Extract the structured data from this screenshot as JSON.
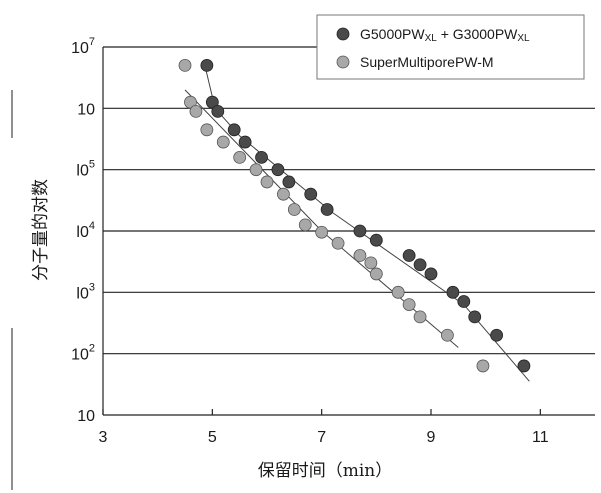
{
  "chart_data": {
    "type": "scatter",
    "title": "",
    "xlabel": "保留时间（min）",
    "ylabel": "分子量的对数",
    "xlim": [
      3,
      12
    ],
    "ylim_log10": [
      1,
      7
    ],
    "x_ticks": [
      {
        "value": 3,
        "label": "3"
      },
      {
        "value": 5,
        "label": "5"
      },
      {
        "value": 7,
        "label": "7"
      },
      {
        "value": 9,
        "label": "9"
      },
      {
        "value": 11,
        "label": "11"
      }
    ],
    "y_ticks": [
      {
        "value": 7,
        "base": "10",
        "exp": "7"
      },
      {
        "value": 6,
        "base": "10",
        "exp": ""
      },
      {
        "value": 5,
        "base": "l0",
        "exp": "5"
      },
      {
        "value": 4,
        "base": "l0",
        "exp": "4"
      },
      {
        "value": 3,
        "base": "l0",
        "exp": "3"
      },
      {
        "value": 2,
        "base": "10",
        "exp": "2"
      },
      {
        "value": 1,
        "base": "10",
        "exp": ""
      }
    ],
    "grid": "horizontal",
    "legend": "top-right",
    "series": [
      {
        "name_main": "G5000PW",
        "name_sub1": "XL",
        "name_mid": " + G3000PW",
        "name_sub2": "XL",
        "color": "#4a4a4a",
        "points": [
          [
            4.9,
            6.7
          ],
          [
            5.0,
            6.1
          ],
          [
            5.1,
            5.95
          ],
          [
            5.4,
            5.65
          ],
          [
            5.6,
            5.45
          ],
          [
            5.9,
            5.2
          ],
          [
            6.2,
            5.0
          ],
          [
            6.4,
            4.8
          ],
          [
            6.8,
            4.6
          ],
          [
            7.1,
            4.35
          ],
          [
            7.7,
            4.0
          ],
          [
            8.0,
            3.85
          ],
          [
            8.6,
            3.6
          ],
          [
            8.8,
            3.45
          ],
          [
            9.0,
            3.3
          ],
          [
            9.4,
            3.0
          ],
          [
            9.6,
            2.85
          ],
          [
            9.8,
            2.6
          ],
          [
            10.2,
            2.3
          ],
          [
            10.7,
            1.8
          ]
        ],
        "fit_line": [
          [
            4.85,
            6.75
          ],
          [
            5.05,
            6.0
          ],
          [
            5.5,
            5.55
          ],
          [
            7.2,
            4.3
          ],
          [
            9.6,
            2.8
          ],
          [
            10.8,
            1.55
          ]
        ]
      },
      {
        "name_main": "SuperMultiporePW-M",
        "name_sub1": "",
        "name_mid": "",
        "name_sub2": "",
        "color": "#a8a8a8",
        "points": [
          [
            4.5,
            6.7
          ],
          [
            4.6,
            6.1
          ],
          [
            4.7,
            5.95
          ],
          [
            4.9,
            5.65
          ],
          [
            5.2,
            5.45
          ],
          [
            5.5,
            5.2
          ],
          [
            5.8,
            5.0
          ],
          [
            6.0,
            4.8
          ],
          [
            6.3,
            4.6
          ],
          [
            6.5,
            4.35
          ],
          [
            6.7,
            4.1
          ],
          [
            7.0,
            3.98
          ],
          [
            7.3,
            3.8
          ],
          [
            7.7,
            3.6
          ],
          [
            7.9,
            3.48
          ],
          [
            8.0,
            3.3
          ],
          [
            8.4,
            3.0
          ],
          [
            8.6,
            2.8
          ],
          [
            8.8,
            2.6
          ],
          [
            9.3,
            2.3
          ],
          [
            9.95,
            1.8
          ]
        ],
        "fit_line": [
          [
            4.5,
            6.3
          ],
          [
            7.0,
            4.0
          ],
          [
            9.5,
            2.1
          ]
        ]
      }
    ]
  }
}
